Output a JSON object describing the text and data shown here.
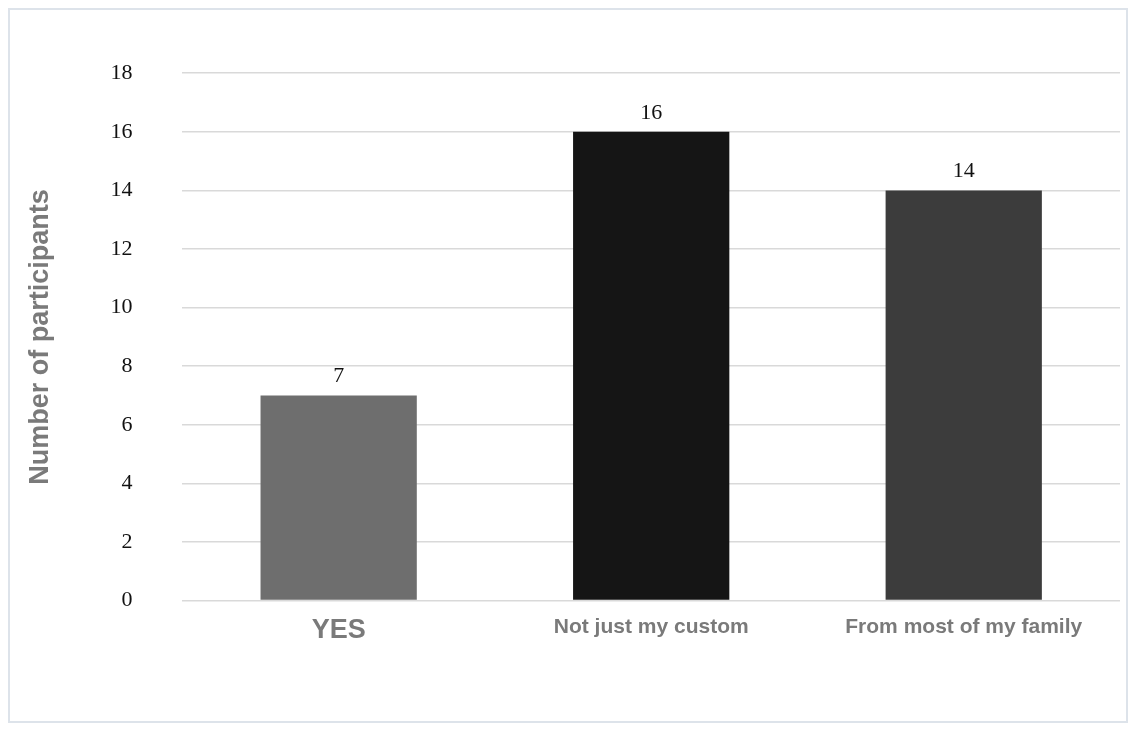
{
  "chart_data": {
    "type": "bar",
    "ylabel": "Number of participants",
    "categories": [
      "YES",
      "Not just my custom",
      "From most of my family"
    ],
    "values": [
      7,
      16,
      14
    ],
    "colors": [
      "#6e6e6e",
      "#151515",
      "#3c3c3c"
    ],
    "ylim": [
      0,
      18
    ],
    "yticks": [
      0,
      2,
      4,
      6,
      8,
      10,
      12,
      14,
      16,
      18
    ],
    "grid": "y",
    "data_labels": true,
    "legend": false
  }
}
